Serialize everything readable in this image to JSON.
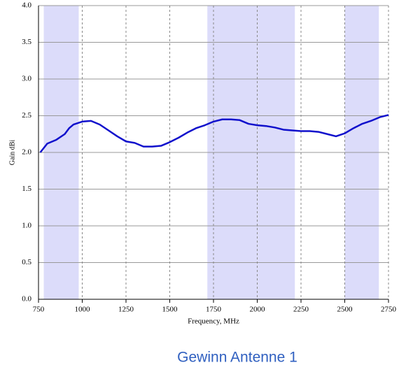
{
  "chart_data": {
    "type": "line",
    "title": "Gewinn Antenne 1",
    "x_label": "Frequency, MHz",
    "y_label": "Gain dBi",
    "x": [
      760,
      800,
      850,
      900,
      925,
      950,
      1000,
      1050,
      1100,
      1150,
      1200,
      1250,
      1300,
      1350,
      1400,
      1450,
      1500,
      1550,
      1600,
      1650,
      1700,
      1750,
      1800,
      1850,
      1900,
      1950,
      2000,
      2050,
      2100,
      2150,
      2200,
      2250,
      2300,
      2350,
      2400,
      2450,
      2500,
      2550,
      2600,
      2650,
      2700,
      2750
    ],
    "series": [
      {
        "name": null,
        "color": "#1010cc",
        "values": [
          2.0,
          2.12,
          2.17,
          2.25,
          2.33,
          2.38,
          2.42,
          2.43,
          2.38,
          2.3,
          2.22,
          2.15,
          2.13,
          2.08,
          2.08,
          2.09,
          2.14,
          2.2,
          2.27,
          2.33,
          2.37,
          2.42,
          2.45,
          2.45,
          2.44,
          2.39,
          2.37,
          2.36,
          2.34,
          2.31,
          2.3,
          2.29,
          2.29,
          2.28,
          2.25,
          2.22,
          2.26,
          2.33,
          2.39,
          2.43,
          2.48,
          2.51
        ]
      }
    ],
    "bands": [
      [
        780,
        980
      ],
      [
        1715,
        2215
      ],
      [
        2500,
        2695
      ]
    ],
    "band_color": "#dcdcfa",
    "xlim": [
      750,
      2750
    ],
    "xticks": [
      750,
      1000,
      1250,
      1500,
      1750,
      2000,
      2250,
      2500,
      2750
    ],
    "ylim": [
      0,
      4
    ],
    "yticks": [
      {
        "value": 0,
        "label": "0.0"
      },
      0.5,
      {
        "value": 1,
        "label": "1.0"
      },
      1.5,
      {
        "value": 2,
        "label": "2.0"
      },
      2.5,
      {
        "value": 3,
        "label": "3.0"
      },
      3.5,
      {
        "value": 4,
        "label": "4.0"
      }
    ],
    "grid": true
  }
}
